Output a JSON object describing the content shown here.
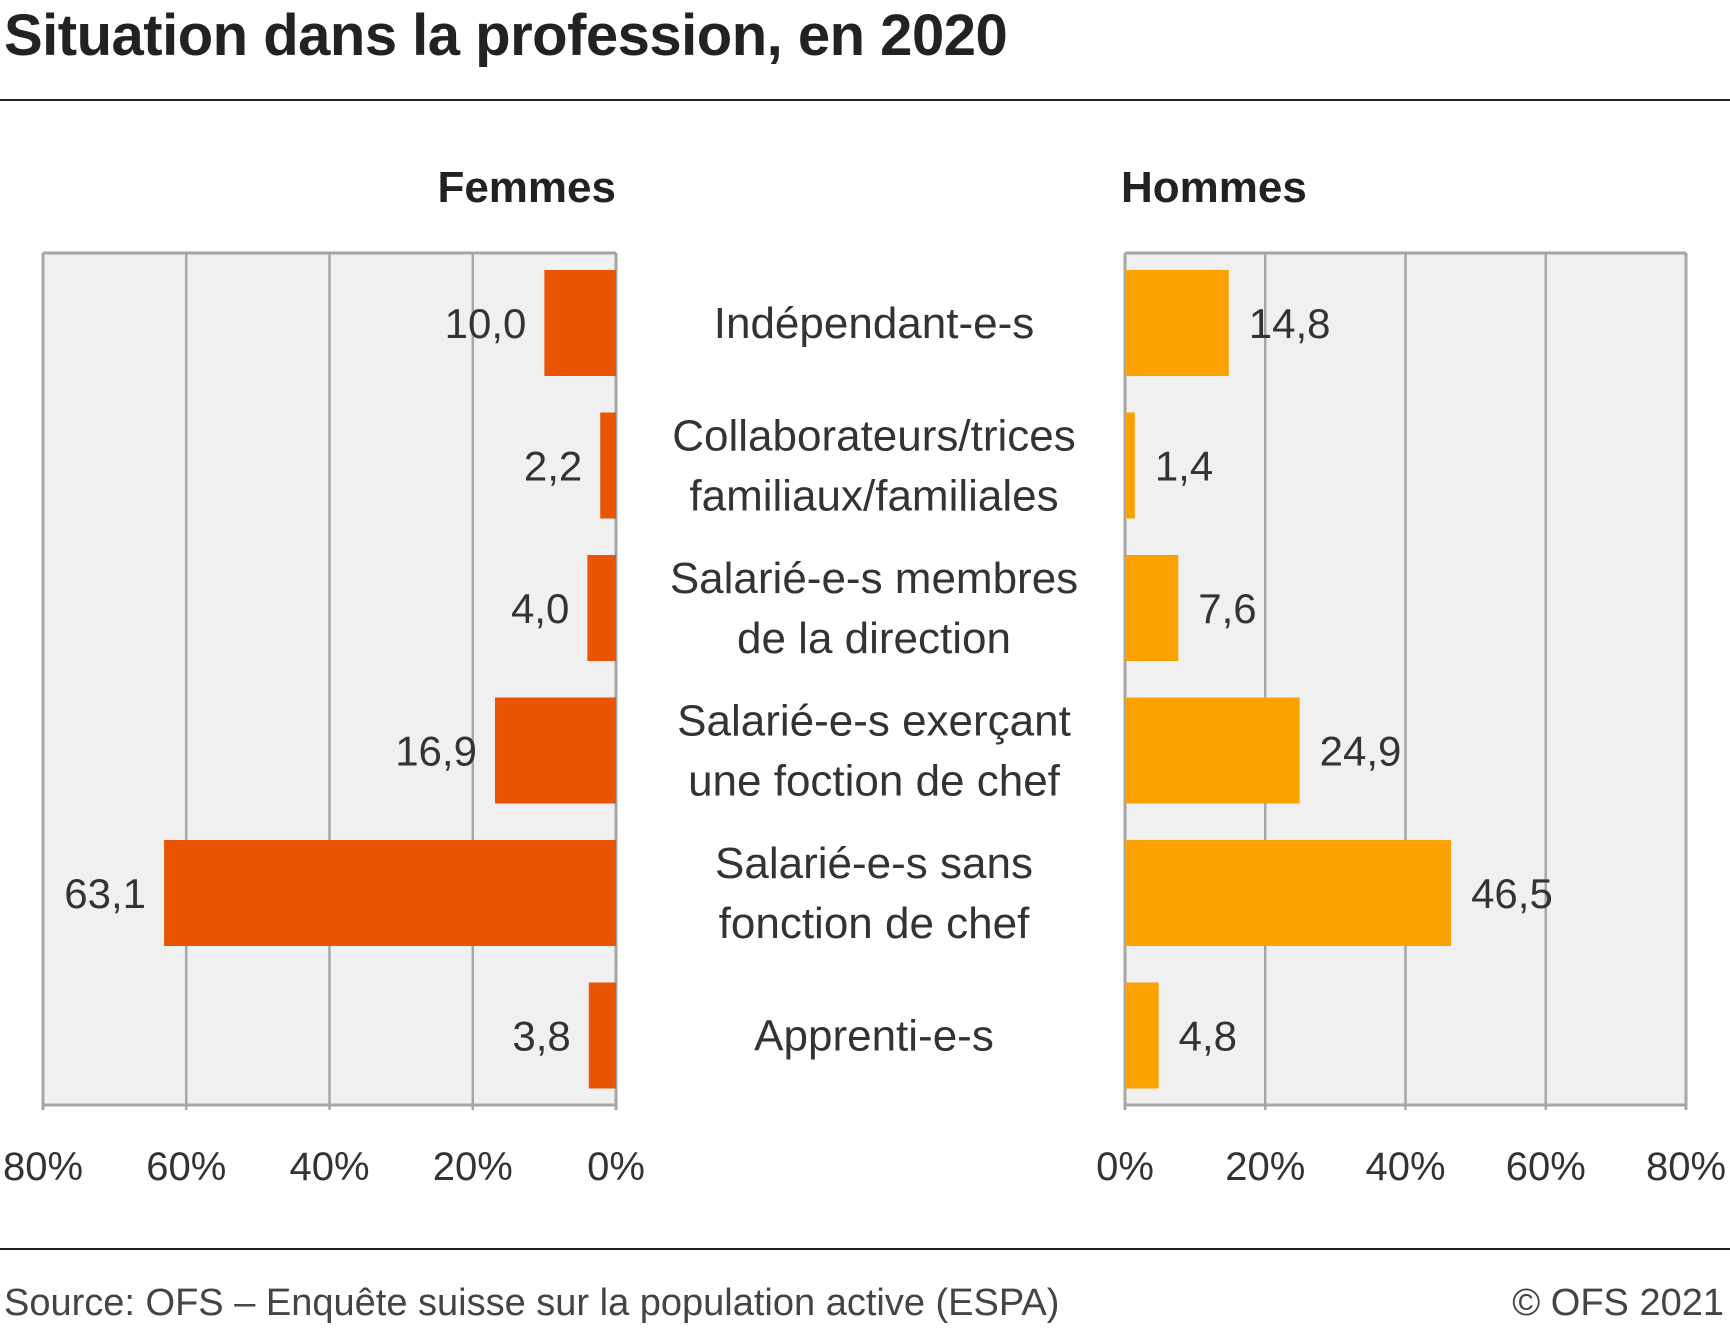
{
  "title": "Situation dans la profession, en 2020",
  "source": "Source: OFS – Enquête suisse sur la population active (ESPA)",
  "copyright": "© OFS 2021",
  "colors": {
    "femmes": "#EA5504",
    "hommes": "#FBA200",
    "panel_bg": "#F0F0F0",
    "grid": "#A6A6A6"
  },
  "chart_data": {
    "type": "bar",
    "orientation": "horizontal",
    "layout": "butterfly",
    "categories": [
      [
        "Indépendant-e-s"
      ],
      [
        "Collaborateurs/trices",
        "familiaux/familiales"
      ],
      [
        "Salarié-e-s membres",
        "de la direction"
      ],
      [
        "Salarié-e-s exerçant",
        "une foction de chef"
      ],
      [
        "Salarié-e-s sans",
        "fonction de chef"
      ],
      [
        "Apprenti-e-s"
      ]
    ],
    "series": [
      {
        "name": "Femmes",
        "values": [
          10.0,
          2.2,
          4.0,
          16.9,
          63.1,
          3.8
        ],
        "labels": [
          "10,0",
          "2,2",
          "4,0",
          "16,9",
          "63,1",
          "3,8"
        ]
      },
      {
        "name": "Hommes",
        "values": [
          14.8,
          1.4,
          7.6,
          24.9,
          46.5,
          4.8
        ],
        "labels": [
          "14,8",
          "1,4",
          "7,6",
          "24,9",
          "46,5",
          "4,8"
        ]
      }
    ],
    "xlim": [
      0,
      80
    ],
    "ticks": [
      0,
      20,
      40,
      60,
      80
    ],
    "tick_labels": [
      "0%",
      "20%",
      "40%",
      "60%",
      "80%"
    ],
    "grid": true
  }
}
